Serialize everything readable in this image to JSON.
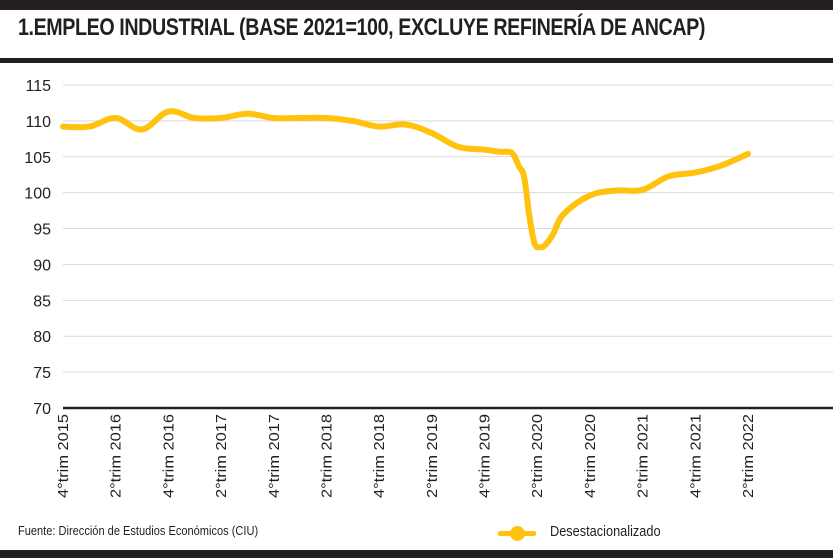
{
  "title": "1.EMPLEO INDUSTRIAL (BASE 2021=100, EXCLUYE REFINERÍA DE ANCAP)",
  "source": "Fuente: Dirección de Estudios Económicos (CIU)",
  "colors": {
    "line": "#ffc20e",
    "text": "#231f20",
    "grid": "#d9d9d9",
    "frame": "#231f20"
  },
  "chart_data": {
    "type": "line",
    "title": "1.EMPLEO INDUSTRIAL (BASE 2021=100, EXCLUYE REFINERÍA DE ANCAP)",
    "ylim": [
      70,
      115
    ],
    "yticks": [
      70,
      75,
      80,
      85,
      90,
      95,
      100,
      105,
      110,
      115
    ],
    "grid": true,
    "legend_position": "bottom-right",
    "xtick_labels": [
      "4°trim 2015",
      "2°trim 2016",
      "4°trim 2016",
      "2°trim 2017",
      "4°trim 2017",
      "2°trim 2018",
      "4°trim 2018",
      "2°trim 2019",
      "4°trim 2019",
      "2°trim 2020",
      "4°trim 2020",
      "2°trim 2021",
      "4°trim 2021",
      "2°trim 2022"
    ],
    "series": [
      {
        "name": "Desestacionalizado",
        "x": [
          0,
          0.5,
          1.0,
          1.5,
          2.0,
          2.5,
          3.0,
          3.5,
          4.0,
          4.5,
          5.0,
          5.5,
          6.0,
          6.5,
          7.0,
          7.5,
          8.0,
          8.3,
          8.45,
          8.55,
          8.65,
          8.75,
          8.85,
          8.95,
          9.05,
          9.15,
          9.3,
          9.5,
          10.0,
          10.5,
          11.0,
          11.5,
          12.0,
          12.5,
          13.0
        ],
        "values": [
          109.2,
          109.2,
          110.4,
          108.8,
          111.3,
          110.4,
          110.4,
          111.0,
          110.4,
          110.4,
          110.4,
          110.0,
          109.2,
          109.5,
          108.3,
          106.4,
          106.0,
          105.7,
          105.7,
          105.3,
          103.7,
          102.2,
          96.8,
          92.9,
          92.4,
          92.7,
          94.2,
          97.0,
          99.6,
          100.3,
          100.4,
          102.3,
          102.8,
          103.8,
          105.4
        ]
      }
    ]
  }
}
